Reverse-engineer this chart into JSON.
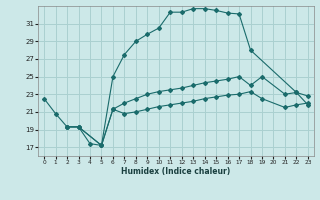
{
  "xlabel": "Humidex (Indice chaleur)",
  "bg_color": "#cce8e8",
  "grid_color": "#aad0d0",
  "line_color": "#1a6b6b",
  "xlim": [
    -0.5,
    23.5
  ],
  "ylim": [
    16.0,
    33.0
  ],
  "xticks": [
    0,
    1,
    2,
    3,
    4,
    5,
    6,
    7,
    8,
    9,
    10,
    11,
    12,
    13,
    14,
    15,
    16,
    17,
    18,
    19,
    20,
    21,
    22,
    23
  ],
  "yticks": [
    17,
    19,
    21,
    23,
    25,
    27,
    29,
    31
  ],
  "line1_x": [
    0,
    1,
    2,
    3,
    4,
    5,
    6,
    7,
    8,
    9,
    10,
    11,
    12,
    13,
    14,
    15,
    16,
    17,
    18,
    22,
    23
  ],
  "line1_y": [
    22.5,
    20.8,
    19.3,
    19.3,
    17.4,
    17.2,
    25.0,
    27.5,
    29.0,
    29.8,
    30.5,
    32.3,
    32.3,
    32.7,
    32.7,
    32.5,
    32.2,
    32.1,
    28.0,
    23.2,
    21.8
  ],
  "line2_x": [
    2,
    3,
    5,
    6,
    7,
    8,
    9,
    10,
    11,
    12,
    13,
    14,
    15,
    16,
    17,
    18,
    19,
    21,
    22,
    23
  ],
  "line2_y": [
    19.3,
    19.3,
    17.2,
    21.3,
    22.0,
    22.5,
    23.0,
    23.3,
    23.5,
    23.7,
    24.0,
    24.3,
    24.5,
    24.7,
    25.0,
    24.0,
    25.0,
    23.0,
    23.2,
    22.8
  ],
  "line3_x": [
    2,
    3,
    5,
    6,
    7,
    8,
    9,
    10,
    11,
    12,
    13,
    14,
    15,
    16,
    17,
    18,
    19,
    21,
    22,
    23
  ],
  "line3_y": [
    19.3,
    19.3,
    17.2,
    21.3,
    20.8,
    21.0,
    21.3,
    21.6,
    21.8,
    22.0,
    22.2,
    22.5,
    22.7,
    22.9,
    23.0,
    23.3,
    22.5,
    21.5,
    21.8,
    22.0
  ]
}
